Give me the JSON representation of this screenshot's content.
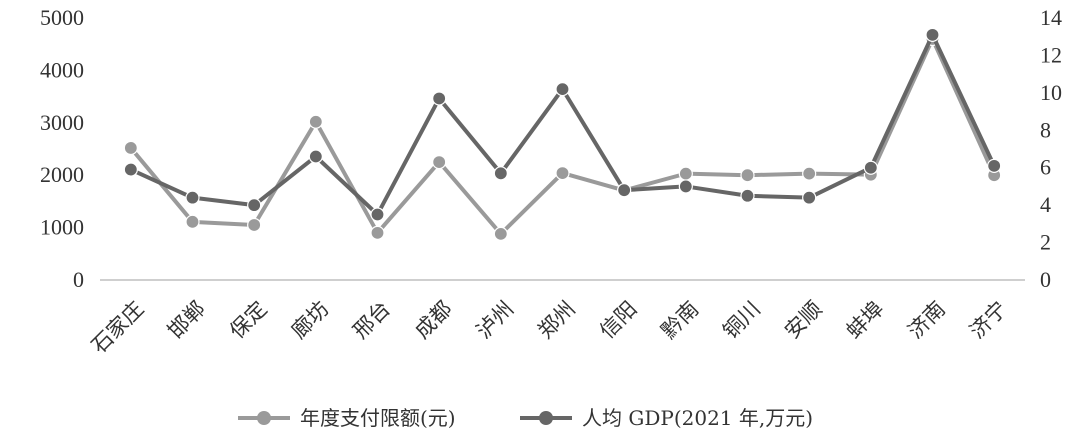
{
  "chart_data": {
    "type": "line",
    "categories": [
      "石家庄",
      "邯郸",
      "保定",
      "廊坊",
      "邢台",
      "成都",
      "泸州",
      "郑州",
      "信阳",
      "黔南",
      "铜川",
      "安顺",
      "蚌埠",
      "济南",
      "济宁"
    ],
    "series": [
      {
        "name": "年度支付限额(元)",
        "axis": "left",
        "color": "#9a9a9a",
        "values": [
          2520,
          1110,
          1050,
          3020,
          900,
          2250,
          880,
          2040,
          1710,
          2030,
          2000,
          2030,
          2010,
          4600,
          2000
        ]
      },
      {
        "name": "人均 GDP(2021 年,万元)",
        "axis": "right",
        "color": "#666666",
        "values": [
          5.9,
          4.4,
          4.0,
          6.6,
          3.5,
          9.7,
          5.7,
          10.2,
          4.8,
          5.0,
          4.5,
          4.4,
          6.0,
          13.1,
          6.1
        ]
      }
    ],
    "y_left": {
      "ylim": [
        0,
        5000
      ],
      "ticks": [
        0,
        1000,
        2000,
        3000,
        4000,
        5000
      ]
    },
    "y_right": {
      "ylim": [
        0,
        14
      ],
      "ticks": [
        0,
        2,
        4,
        6,
        8,
        10,
        12,
        14
      ]
    },
    "grid": false,
    "legend_position": "bottom-center"
  }
}
